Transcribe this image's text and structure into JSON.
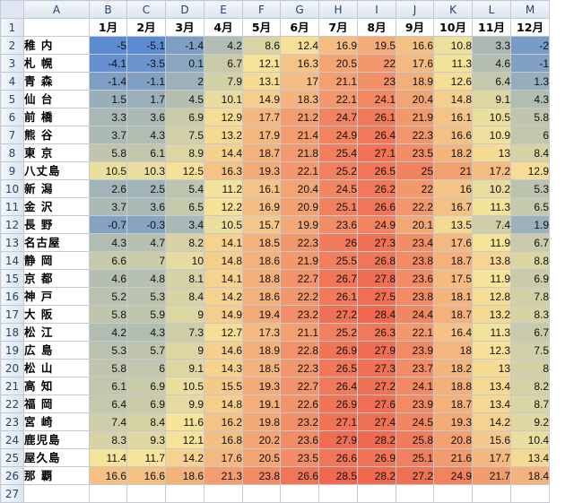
{
  "sheet": {
    "column_headers": [
      "A",
      "B",
      "C",
      "D",
      "E",
      "F",
      "G",
      "H",
      "I",
      "J",
      "K",
      "L",
      "M"
    ],
    "row_numbers": [
      1,
      2,
      3,
      4,
      5,
      6,
      7,
      8,
      9,
      10,
      11,
      12,
      13,
      14,
      15,
      16,
      17,
      18,
      19,
      20,
      21,
      22,
      23,
      24,
      25,
      26,
      27
    ],
    "months": [
      "1月",
      "2月",
      "3月",
      "4月",
      "5月",
      "6月",
      "7月",
      "8月",
      "9月",
      "10月",
      "11月",
      "12月"
    ],
    "rows": [
      {
        "city": "稚 内",
        "values": [
          "-5",
          "-5.1",
          "-1.4",
          "4.2",
          "8.6",
          "12.4",
          "16.9",
          "19.5",
          "16.6",
          "10.8",
          "3.3",
          "-2"
        ]
      },
      {
        "city": "札 幌",
        "values": [
          "-4.1",
          "-3.5",
          "0.1",
          "6.7",
          "12.1",
          "16.3",
          "20.5",
          "22",
          "17.6",
          "11.3",
          "4.6",
          "-1"
        ]
      },
      {
        "city": "青 森",
        "values": [
          "-1.4",
          "-1.1",
          "2",
          "7.9",
          "13.1",
          "17",
          "21.1",
          "23",
          "18.9",
          "12.6",
          "6.4",
          "1.3"
        ]
      },
      {
        "city": "仙 台",
        "values": [
          "1.5",
          "1.7",
          "4.5",
          "10.1",
          "14.9",
          "18.3",
          "22.1",
          "24.1",
          "20.4",
          "14.8",
          "9.1",
          "4.3"
        ]
      },
      {
        "city": "前 橋",
        "values": [
          "3.3",
          "3.6",
          "6.9",
          "12.9",
          "17.7",
          "21.2",
          "24.7",
          "26.1",
          "21.9",
          "16.1",
          "10.5",
          "5.8"
        ]
      },
      {
        "city": "熊 谷",
        "values": [
          "3.7",
          "4.3",
          "7.5",
          "13.2",
          "17.9",
          "21.4",
          "24.9",
          "26.4",
          "22.3",
          "16.6",
          "10.9",
          "6"
        ]
      },
      {
        "city": "東 京",
        "values": [
          "5.8",
          "6.1",
          "8.9",
          "14.4",
          "18.7",
          "21.8",
          "25.4",
          "27.1",
          "23.5",
          "18.2",
          "13",
          "8.4"
        ]
      },
      {
        "city": "八丈島",
        "values": [
          "10.5",
          "10.3",
          "12.5",
          "16.3",
          "19.3",
          "22.1",
          "25.2",
          "26.5",
          "25",
          "21",
          "17.2",
          "12.9"
        ]
      },
      {
        "city": "新 潟",
        "values": [
          "2.6",
          "2.5",
          "5.4",
          "11.2",
          "16.1",
          "20.4",
          "24.5",
          "26.2",
          "22",
          "16",
          "10.2",
          "5.3"
        ]
      },
      {
        "city": "金 沢",
        "values": [
          "3.7",
          "3.6",
          "6.5",
          "12.2",
          "16.9",
          "20.9",
          "25.1",
          "26.6",
          "22.2",
          "16.7",
          "11.3",
          "6.5"
        ]
      },
      {
        "city": "長 野",
        "values": [
          "-0.7",
          "-0.3",
          "3.4",
          "10.5",
          "15.7",
          "19.9",
          "23.6",
          "24.9",
          "20.1",
          "13.5",
          "7.4",
          "1.9"
        ]
      },
      {
        "city": "名古屋",
        "values": [
          "4.3",
          "4.7",
          "8.2",
          "14.1",
          "18.5",
          "22.3",
          "26",
          "27.3",
          "23.4",
          "17.6",
          "11.9",
          "6.7"
        ]
      },
      {
        "city": "静 岡",
        "values": [
          "6.6",
          "7",
          "10",
          "14.8",
          "18.6",
          "21.9",
          "25.5",
          "26.8",
          "23.8",
          "18.7",
          "13.8",
          "8.8"
        ]
      },
      {
        "city": "京 都",
        "values": [
          "4.6",
          "4.8",
          "8.1",
          "14.1",
          "18.8",
          "22.7",
          "26.7",
          "27.8",
          "23.6",
          "17.5",
          "11.9",
          "6.9"
        ]
      },
      {
        "city": "神 戸",
        "values": [
          "5.2",
          "5.3",
          "8.4",
          "14.2",
          "18.6",
          "22.2",
          "26.1",
          "27.5",
          "23.8",
          "18.1",
          "12.8",
          "7.8"
        ]
      },
      {
        "city": "大 阪",
        "values": [
          "5.8",
          "5.9",
          "9",
          "14.9",
          "19.4",
          "23.2",
          "27.2",
          "28.4",
          "24.4",
          "18.7",
          "13.2",
          "8.3"
        ]
      },
      {
        "city": "松 江",
        "values": [
          "4.2",
          "4.3",
          "7.3",
          "12.7",
          "17.3",
          "21.1",
          "25.2",
          "26.3",
          "22.1",
          "16.4",
          "11.3",
          "6.7"
        ]
      },
      {
        "city": "広 島",
        "values": [
          "5.3",
          "5.7",
          "9",
          "14.6",
          "18.9",
          "22.8",
          "26.9",
          "27.9",
          "23.9",
          "18",
          "12.3",
          "7.5"
        ]
      },
      {
        "city": "松 山",
        "values": [
          "5.8",
          "6",
          "9.1",
          "14.3",
          "18.5",
          "22.3",
          "26.5",
          "27.3",
          "23.7",
          "18.2",
          "13",
          "8"
        ]
      },
      {
        "city": "高 知",
        "values": [
          "6.1",
          "6.9",
          "10.5",
          "15.5",
          "19.3",
          "22.7",
          "26.4",
          "27.2",
          "24.1",
          "18.8",
          "13.4",
          "8.2"
        ]
      },
      {
        "city": "福 岡",
        "values": [
          "6.4",
          "6.9",
          "9.9",
          "14.8",
          "19.1",
          "22.6",
          "26.9",
          "27.6",
          "23.9",
          "18.7",
          "13.4",
          "8.7"
        ]
      },
      {
        "city": "宮 崎",
        "values": [
          "7.4",
          "8.4",
          "11.6",
          "16.2",
          "19.8",
          "23.2",
          "27.1",
          "27.4",
          "24.5",
          "19.3",
          "14.2",
          "9.2"
        ]
      },
      {
        "city": "鹿児島",
        "values": [
          "8.3",
          "9.3",
          "12.1",
          "16.8",
          "20.2",
          "23.6",
          "27.9",
          "28.2",
          "25.8",
          "20.8",
          "15.6",
          "10.4"
        ]
      },
      {
        "city": "屋久島",
        "values": [
          "11.4",
          "11.7",
          "14.2",
          "17.6",
          "20.5",
          "23.5",
          "26.6",
          "26.9",
          "25.1",
          "21.6",
          "17.7",
          "13.4"
        ]
      },
      {
        "city": "那 覇",
        "values": [
          "16.6",
          "16.6",
          "18.6",
          "21.3",
          "23.8",
          "26.6",
          "28.5",
          "28.2",
          "27.2",
          "24.9",
          "21.7",
          "18.4"
        ]
      }
    ]
  },
  "colors": {
    "scale_cold": "#5b8bd0",
    "scale_mid": "#f6e59a",
    "scale_hot": "#f0684f",
    "grid": "#c4c9d4",
    "header_bg": "#dbe4f0"
  }
}
